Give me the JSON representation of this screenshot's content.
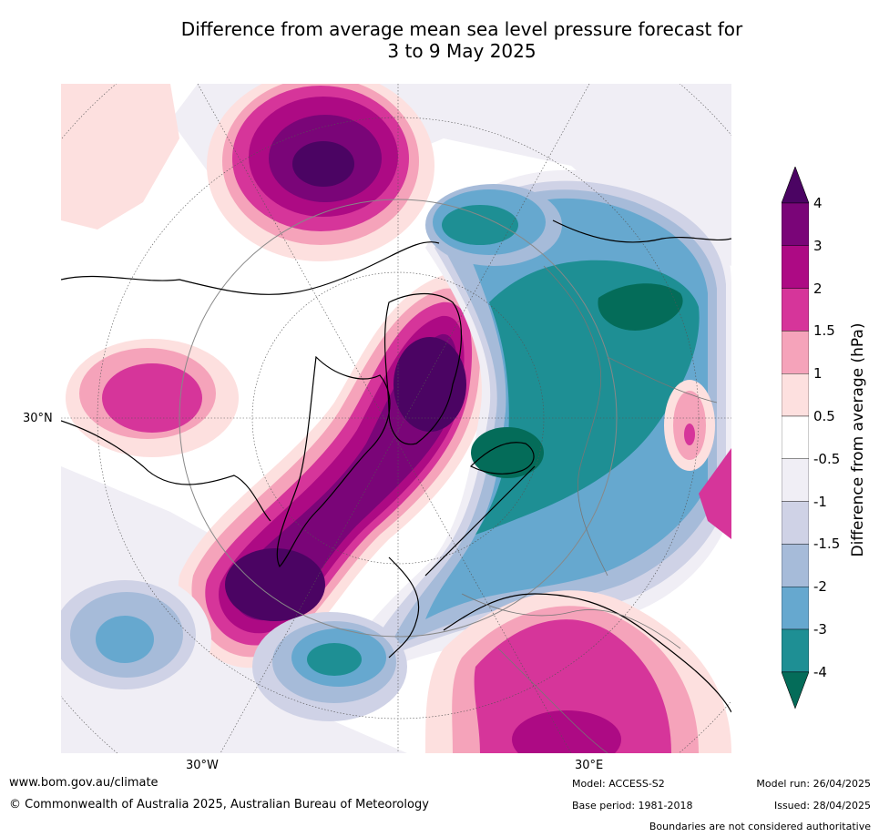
{
  "title_line1": "Difference from average mean sea level pressure forecast for",
  "title_line2": "3 to 9 May 2025",
  "map": {
    "lat_label": "30°N",
    "lon_label_west": "30°W",
    "lon_label_east": "30°E"
  },
  "colorbar": {
    "title": "Difference from average (hPa)",
    "ticks": [
      "4",
      "3",
      "2",
      "1.5",
      "1",
      "0.5",
      "-0.5",
      "-1",
      "-1.5",
      "-2",
      "-3",
      "-4"
    ],
    "colors": {
      "extend_top": "#4b0463",
      "b3_4": "#7a0578",
      "b2_3": "#ad0a84",
      "b15_2": "#d6359a",
      "b1_15": "#f5a3ba",
      "b05_1": "#fde0df",
      "b_neutral": "#ffffff",
      "bm1_m05": "#f0eef5",
      "bm15_m1": "#cfd2e6",
      "bm2_m15": "#a6bbd9",
      "bm3_m2": "#66a8cf",
      "bm4_m3": "#1e8f94",
      "extend_bottom": "#046c59"
    }
  },
  "footer": {
    "url": "www.bom.gov.au/climate",
    "copyright": "© Commonwealth of Australia 2025, Australian Bureau of Meteorology",
    "model": "Model: ACCESS-S2",
    "base_period": "Base period: 1981-2018",
    "model_run": "Model run: 26/04/2025",
    "issued": "Issued: 28/04/2025",
    "disclaimer": "Boundaries are not considered authoritative"
  }
}
